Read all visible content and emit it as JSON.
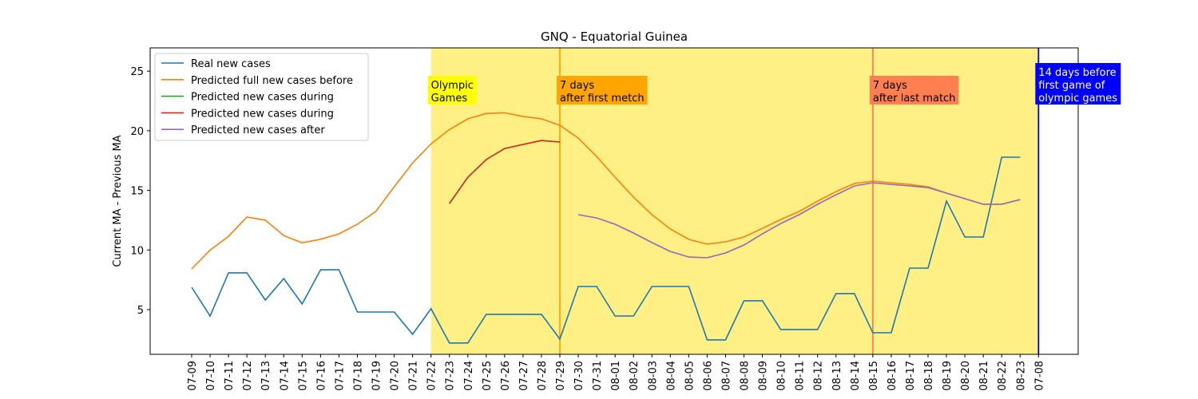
{
  "chart_data": {
    "type": "line",
    "title": "GNQ - Equatorial Guinea",
    "ylabel": "Current MA - Previous MA",
    "categories": [
      "07-09",
      "07-10",
      "07-11",
      "07-12",
      "07-13",
      "07-14",
      "07-15",
      "07-16",
      "07-17",
      "07-18",
      "07-19",
      "07-20",
      "07-21",
      "07-22",
      "07-23",
      "07-24",
      "07-25",
      "07-26",
      "07-27",
      "07-28",
      "07-29",
      "07-30",
      "07-31",
      "08-01",
      "08-02",
      "08-03",
      "08-04",
      "08-05",
      "08-06",
      "08-07",
      "08-08",
      "08-09",
      "08-10",
      "08-11",
      "08-12",
      "08-13",
      "08-14",
      "08-15",
      "08-16",
      "08-17",
      "08-18",
      "08-19",
      "08-20",
      "08-21",
      "08-22",
      "08-23",
      "07-08"
    ],
    "series": [
      {
        "name": "Real new cases",
        "color": "#1f77b4",
        "values": [
          6.87,
          4.46,
          8.08,
          8.08,
          5.8,
          7.6,
          5.47,
          8.34,
          8.34,
          4.8,
          4.8,
          4.8,
          2.93,
          5.07,
          2.2,
          2.2,
          4.6,
          4.6,
          4.6,
          4.6,
          2.53,
          6.94,
          6.94,
          4.46,
          4.46,
          6.94,
          6.94,
          6.94,
          2.46,
          2.46,
          5.74,
          5.74,
          3.33,
          3.33,
          3.33,
          6.34,
          6.34,
          3.06,
          3.06,
          8.48,
          8.48,
          14.1,
          11.09,
          11.09,
          17.78,
          17.78,
          null
        ]
      },
      {
        "name": "Predicted full new cases before",
        "color": "#ff7f0e",
        "values": [
          8.41,
          10.0,
          11.15,
          12.76,
          12.5,
          11.2,
          10.6,
          10.9,
          11.35,
          12.16,
          13.23,
          15.3,
          17.3,
          18.9,
          20.1,
          21.0,
          21.45,
          21.5,
          21.2,
          21.0,
          20.45,
          19.38,
          17.84,
          16.1,
          14.43,
          12.96,
          11.76,
          10.89,
          10.49,
          10.69,
          11.09,
          11.82,
          12.56,
          13.23,
          14.1,
          14.9,
          15.57,
          15.77,
          15.64,
          15.5,
          15.3,
          14.77,
          14.3,
          13.83,
          13.83,
          14.23,
          null
        ]
      },
      {
        "name": "Predicted new cases during",
        "color": "#2ca02c",
        "values": [
          null,
          null,
          null,
          null,
          null,
          null,
          null,
          null,
          null,
          null,
          null,
          null,
          null,
          null,
          13.9,
          16.1,
          17.58,
          18.51,
          18.85,
          19.18,
          19.05,
          null,
          null,
          null,
          null,
          null,
          null,
          null,
          null,
          null,
          null,
          null,
          null,
          null,
          null,
          null,
          null,
          null,
          null,
          null,
          null,
          null,
          null,
          null,
          null,
          null,
          null
        ]
      },
      {
        "name": "Predicted new cases during",
        "color": "#d62728",
        "values": [
          null,
          null,
          null,
          null,
          null,
          null,
          null,
          null,
          null,
          null,
          null,
          null,
          null,
          null,
          13.9,
          16.1,
          17.58,
          18.51,
          18.85,
          19.18,
          19.05,
          null,
          null,
          null,
          null,
          null,
          null,
          null,
          null,
          null,
          null,
          null,
          null,
          null,
          null,
          null,
          null,
          null,
          null,
          null,
          null,
          null,
          null,
          null,
          null,
          null,
          null
        ]
      },
      {
        "name": "Predicted new cases after",
        "color": "#9467bd",
        "values": [
          null,
          null,
          null,
          null,
          null,
          null,
          null,
          null,
          null,
          null,
          null,
          null,
          null,
          null,
          null,
          null,
          null,
          null,
          null,
          null,
          null,
          12.96,
          12.69,
          12.16,
          11.42,
          10.62,
          9.88,
          9.41,
          9.35,
          9.75,
          10.42,
          11.35,
          12.22,
          12.96,
          13.83,
          14.63,
          15.37,
          15.64,
          15.5,
          15.37,
          15.23,
          14.77,
          14.3,
          13.83,
          13.83,
          14.23,
          null
        ]
      }
    ],
    "ylim": [
      1.25,
      26.95
    ],
    "yticks": [
      5,
      10,
      15,
      20,
      25
    ],
    "span": {
      "from": 13,
      "to": 46,
      "color": "#fff085"
    },
    "vlines": [
      {
        "x": 20,
        "color": "#ffa500"
      },
      {
        "x": 37,
        "color": "#ff7f50"
      },
      {
        "x": 46,
        "color": "#0000ff"
      }
    ],
    "annotations": [
      {
        "x": 13,
        "text": [
          "Olympic",
          "Games"
        ],
        "background": "#ffff00",
        "text_color": "#000000"
      },
      {
        "x": 20,
        "text": [
          "7 days",
          "after first metch"
        ],
        "background": "#ffa500",
        "text_color": "#000000"
      },
      {
        "x": 37,
        "text": [
          "7 days",
          "after last match"
        ],
        "background": "#ff7f50",
        "text_color": "#000000"
      },
      {
        "x": 46,
        "text": [
          "14 days before",
          "first game of",
          "olympic games"
        ],
        "background": "#0000ff",
        "text_color": "#ffffff"
      }
    ],
    "legend": "upper left"
  }
}
